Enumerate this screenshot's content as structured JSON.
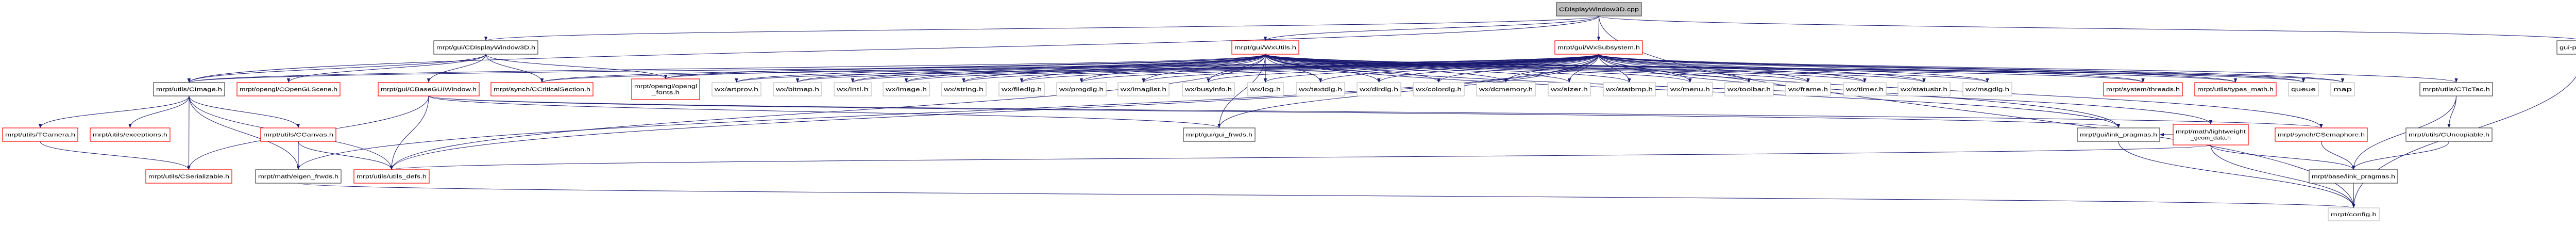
{
  "colors": {
    "edge": "#191970",
    "root_fill": "#bfbfbf",
    "documented_border": "#000000",
    "undocumented_border": "#ff0000",
    "external_border": "#bfbfbf"
  },
  "nodes": [
    {
      "id": "cpp",
      "label": [
        "CDisplayWindow3D.cpp"
      ],
      "kind": "root"
    },
    {
      "id": "cdw3d",
      "label": [
        "mrpt/gui/CDisplayWindow3D.h"
      ],
      "kind": "documented"
    },
    {
      "id": "wxutils",
      "label": [
        "mrpt/gui/WxUtils.h"
      ],
      "kind": "undocumented"
    },
    {
      "id": "wxsub",
      "label": [
        "mrpt/gui/WxSubsystem.h"
      ],
      "kind": "undocumented"
    },
    {
      "id": "precomp",
      "label": [
        "gui-precomp.h"
      ],
      "kind": "documented"
    },
    {
      "id": "cimage",
      "label": [
        "mrpt/utils/CImage.h"
      ],
      "kind": "documented"
    },
    {
      "id": "glscene",
      "label": [
        "mrpt/opengl/COpenGLScene.h"
      ],
      "kind": "undocumented"
    },
    {
      "id": "basegui",
      "label": [
        "mrpt/gui/CBaseGUIWindow.h"
      ],
      "kind": "undocumented"
    },
    {
      "id": "critsec",
      "label": [
        "mrpt/synch/CCriticalSection.h"
      ],
      "kind": "undocumented"
    },
    {
      "id": "glfonts",
      "label": [
        "mrpt/opengl/opengl",
        "_fonts.h"
      ],
      "kind": "undocumented"
    },
    {
      "id": "artprov",
      "label": [
        "wx/artprov.h"
      ],
      "kind": "external"
    },
    {
      "id": "bitmap",
      "label": [
        "wx/bitmap.h"
      ],
      "kind": "external"
    },
    {
      "id": "intl",
      "label": [
        "wx/intl.h"
      ],
      "kind": "external"
    },
    {
      "id": "image",
      "label": [
        "wx/image.h"
      ],
      "kind": "external"
    },
    {
      "id": "string",
      "label": [
        "wx/string.h"
      ],
      "kind": "external"
    },
    {
      "id": "filedlg",
      "label": [
        "wx/filedlg.h"
      ],
      "kind": "external"
    },
    {
      "id": "progdlg",
      "label": [
        "wx/progdlg.h"
      ],
      "kind": "external"
    },
    {
      "id": "imaglist",
      "label": [
        "wx/imaglist.h"
      ],
      "kind": "external"
    },
    {
      "id": "busyinfo",
      "label": [
        "wx/busyinfo.h"
      ],
      "kind": "external"
    },
    {
      "id": "log",
      "label": [
        "wx/log.h"
      ],
      "kind": "external"
    },
    {
      "id": "textdlg",
      "label": [
        "wx/textdlg.h"
      ],
      "kind": "external"
    },
    {
      "id": "dirdlg",
      "label": [
        "wx/dirdlg.h"
      ],
      "kind": "external"
    },
    {
      "id": "colordlg",
      "label": [
        "wx/colordlg.h"
      ],
      "kind": "external"
    },
    {
      "id": "dcmemory",
      "label": [
        "wx/dcmemory.h"
      ],
      "kind": "external"
    },
    {
      "id": "sizer",
      "label": [
        "wx/sizer.h"
      ],
      "kind": "external"
    },
    {
      "id": "statbmp",
      "label": [
        "wx/statbmp.h"
      ],
      "kind": "external"
    },
    {
      "id": "menu",
      "label": [
        "wx/menu.h"
      ],
      "kind": "external"
    },
    {
      "id": "toolbar",
      "label": [
        "wx/toolbar.h"
      ],
      "kind": "external"
    },
    {
      "id": "frame",
      "label": [
        "wx/frame.h"
      ],
      "kind": "external"
    },
    {
      "id": "timer",
      "label": [
        "wx/timer.h"
      ],
      "kind": "external"
    },
    {
      "id": "statusbr",
      "label": [
        "wx/statusbr.h"
      ],
      "kind": "external"
    },
    {
      "id": "msgdlg",
      "label": [
        "wx/msgdlg.h"
      ],
      "kind": "external"
    },
    {
      "id": "threads",
      "label": [
        "mrpt/system/threads.h"
      ],
      "kind": "undocumented"
    },
    {
      "id": "typesmath",
      "label": [
        "mrpt/utils/types_math.h"
      ],
      "kind": "undocumented"
    },
    {
      "id": "queue",
      "label": [
        "queue"
      ],
      "kind": "external"
    },
    {
      "id": "map",
      "label": [
        "map"
      ],
      "kind": "external"
    },
    {
      "id": "tictac",
      "label": [
        "mrpt/utils/CTicTac.h"
      ],
      "kind": "documented"
    },
    {
      "id": "tcamera",
      "label": [
        "mrpt/utils/TCamera.h"
      ],
      "kind": "undocumented"
    },
    {
      "id": "exceptions",
      "label": [
        "mrpt/utils/exceptions.h"
      ],
      "kind": "undocumented"
    },
    {
      "id": "ccanvas",
      "label": [
        "mrpt/utils/CCanvas.h"
      ],
      "kind": "undocumented"
    },
    {
      "id": "guifrwds",
      "label": [
        "mrpt/gui/gui_frwds.h"
      ],
      "kind": "documented"
    },
    {
      "id": "guilink",
      "label": [
        "mrpt/gui/link_pragmas.h"
      ],
      "kind": "documented"
    },
    {
      "id": "lwgeom",
      "label": [
        "mrpt/math/lightweight",
        "_geom_data.h"
      ],
      "kind": "undocumented"
    },
    {
      "id": "semaphore",
      "label": [
        "mrpt/synch/CSemaphore.h"
      ],
      "kind": "undocumented"
    },
    {
      "id": "uncopiable",
      "label": [
        "mrpt/utils/CUncopiable.h"
      ],
      "kind": "documented"
    },
    {
      "id": "serializable",
      "label": [
        "mrpt/utils/CSerializable.h"
      ],
      "kind": "undocumented"
    },
    {
      "id": "eigen",
      "label": [
        "mrpt/math/eigen_frwds.h"
      ],
      "kind": "documented"
    },
    {
      "id": "utilsdefs",
      "label": [
        "mrpt/utils/utils_defs.h"
      ],
      "kind": "undocumented"
    },
    {
      "id": "baselink",
      "label": [
        "mrpt/base/link_pragmas.h"
      ],
      "kind": "documented"
    },
    {
      "id": "config",
      "label": [
        "mrpt/config.h"
      ],
      "kind": "external"
    }
  ],
  "edges": [
    [
      "cpp",
      "cdw3d"
    ],
    [
      "cpp",
      "wxutils"
    ],
    [
      "cpp",
      "wxsub"
    ],
    [
      "cpp",
      "precomp"
    ],
    [
      "cpp",
      "cimage"
    ],
    [
      "cpp",
      "config"
    ],
    [
      "cdw3d",
      "cimage"
    ],
    [
      "cdw3d",
      "glscene"
    ],
    [
      "cdw3d",
      "basegui"
    ],
    [
      "cdw3d",
      "critsec"
    ],
    [
      "cdw3d",
      "glfonts"
    ],
    [
      "wxutils",
      "cimage"
    ],
    [
      "wxutils",
      "critsec"
    ],
    [
      "wxutils",
      "glfonts"
    ],
    [
      "wxutils",
      "artprov"
    ],
    [
      "wxutils",
      "bitmap"
    ],
    [
      "wxutils",
      "intl"
    ],
    [
      "wxutils",
      "image"
    ],
    [
      "wxutils",
      "string"
    ],
    [
      "wxutils",
      "filedlg"
    ],
    [
      "wxutils",
      "progdlg"
    ],
    [
      "wxutils",
      "imaglist"
    ],
    [
      "wxutils",
      "busyinfo"
    ],
    [
      "wxutils",
      "log"
    ],
    [
      "wxutils",
      "textdlg"
    ],
    [
      "wxutils",
      "dirdlg"
    ],
    [
      "wxutils",
      "colordlg"
    ],
    [
      "wxutils",
      "dcmemory"
    ],
    [
      "wxutils",
      "sizer"
    ],
    [
      "wxutils",
      "statbmp"
    ],
    [
      "wxutils",
      "menu"
    ],
    [
      "wxutils",
      "toolbar"
    ],
    [
      "wxutils",
      "frame"
    ],
    [
      "wxutils",
      "timer"
    ],
    [
      "wxutils",
      "statusbr"
    ],
    [
      "wxutils",
      "msgdlg"
    ],
    [
      "wxutils",
      "threads"
    ],
    [
      "wxutils",
      "typesmath"
    ],
    [
      "wxutils",
      "queue"
    ],
    [
      "wxutils",
      "map"
    ],
    [
      "wxutils",
      "guifrwds"
    ],
    [
      "wxutils",
      "guilink"
    ],
    [
      "wxutils",
      "utilsdefs"
    ],
    [
      "wxutils",
      "lwgeom"
    ],
    [
      "wxsub",
      "cimage"
    ],
    [
      "wxsub",
      "critsec"
    ],
    [
      "wxsub",
      "glfonts"
    ],
    [
      "wxsub",
      "artprov"
    ],
    [
      "wxsub",
      "bitmap"
    ],
    [
      "wxsub",
      "intl"
    ],
    [
      "wxsub",
      "image"
    ],
    [
      "wxsub",
      "string"
    ],
    [
      "wxsub",
      "filedlg"
    ],
    [
      "wxsub",
      "progdlg"
    ],
    [
      "wxsub",
      "imaglist"
    ],
    [
      "wxsub",
      "busyinfo"
    ],
    [
      "wxsub",
      "log"
    ],
    [
      "wxsub",
      "textdlg"
    ],
    [
      "wxsub",
      "dirdlg"
    ],
    [
      "wxsub",
      "colordlg"
    ],
    [
      "wxsub",
      "dcmemory"
    ],
    [
      "wxsub",
      "sizer"
    ],
    [
      "wxsub",
      "statbmp"
    ],
    [
      "wxsub",
      "menu"
    ],
    [
      "wxsub",
      "toolbar"
    ],
    [
      "wxsub",
      "frame"
    ],
    [
      "wxsub",
      "timer"
    ],
    [
      "wxsub",
      "statusbr"
    ],
    [
      "wxsub",
      "msgdlg"
    ],
    [
      "wxsub",
      "threads"
    ],
    [
      "wxsub",
      "typesmath"
    ],
    [
      "wxsub",
      "queue"
    ],
    [
      "wxsub",
      "map"
    ],
    [
      "wxsub",
      "tictac"
    ],
    [
      "wxsub",
      "semaphore"
    ],
    [
      "wxsub",
      "guifrwds"
    ],
    [
      "wxsub",
      "guilink"
    ],
    [
      "wxsub",
      "utilsdefs"
    ],
    [
      "wxsub",
      "eigen"
    ],
    [
      "precomp",
      "config"
    ],
    [
      "cimage",
      "tcamera"
    ],
    [
      "cimage",
      "exceptions"
    ],
    [
      "cimage",
      "serializable"
    ],
    [
      "cimage",
      "eigen"
    ],
    [
      "cimage",
      "ccanvas"
    ],
    [
      "cimage",
      "utilsdefs"
    ],
    [
      "basegui",
      "serializable"
    ],
    [
      "basegui",
      "guifrwds"
    ],
    [
      "basegui",
      "guilink"
    ],
    [
      "basegui",
      "semaphore"
    ],
    [
      "basegui",
      "utilsdefs"
    ],
    [
      "tcamera",
      "serializable"
    ],
    [
      "ccanvas",
      "eigen"
    ],
    [
      "ccanvas",
      "utilsdefs"
    ],
    [
      "tictac",
      "baselink"
    ],
    [
      "tictac",
      "uncopiable"
    ],
    [
      "uncopiable",
      "baselink"
    ],
    [
      "semaphore",
      "baselink"
    ],
    [
      "lwgeom",
      "guilink"
    ],
    [
      "lwgeom",
      "baselink"
    ],
    [
      "lwgeom",
      "config"
    ],
    [
      "lwgeom",
      "utilsdefs"
    ],
    [
      "guilink",
      "config"
    ],
    [
      "eigen",
      "config"
    ],
    [
      "baselink",
      "config"
    ]
  ]
}
